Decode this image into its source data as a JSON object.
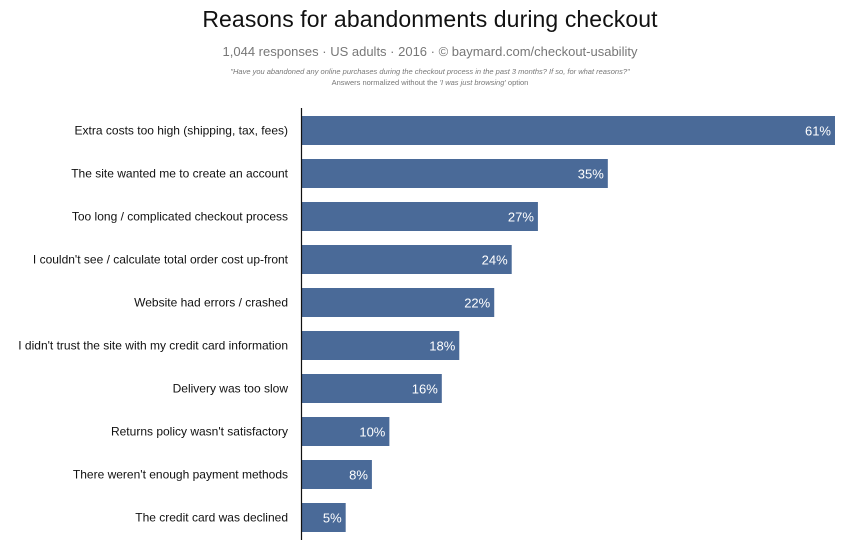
{
  "chart_data": {
    "type": "bar",
    "orientation": "horizontal",
    "title": "Reasons for abandonments during checkout",
    "subtitle": "1,044 responses  ·  US adults  ·  2016  ·  ©  baymard.com/checkout-usability",
    "question": "\"Have you abandoned any online purchases during the checkout process in the past 3 months? If so, for what reasons?\"",
    "note_prefix": "Answers normalized without the ",
    "note_emphasis": "'I was just browsing'",
    "note_suffix": " option",
    "value_suffix": "%",
    "categories": [
      "Extra costs too high (shipping, tax, fees)",
      "The site wanted me to create an account",
      "Too long / complicated checkout process",
      "I couldn't see / calculate total order cost up-front",
      "Website had errors / crashed",
      "I didn't trust the site with my credit card information",
      "Delivery was too slow",
      "Returns policy wasn't satisfactory",
      "There weren't enough payment methods",
      "The credit card was declined"
    ],
    "values": [
      61,
      35,
      27,
      24,
      22,
      18,
      16,
      10,
      8,
      5
    ],
    "xlim": [
      0,
      61
    ],
    "bar_color": "#4a6a98",
    "grid": false,
    "legend": "none"
  }
}
